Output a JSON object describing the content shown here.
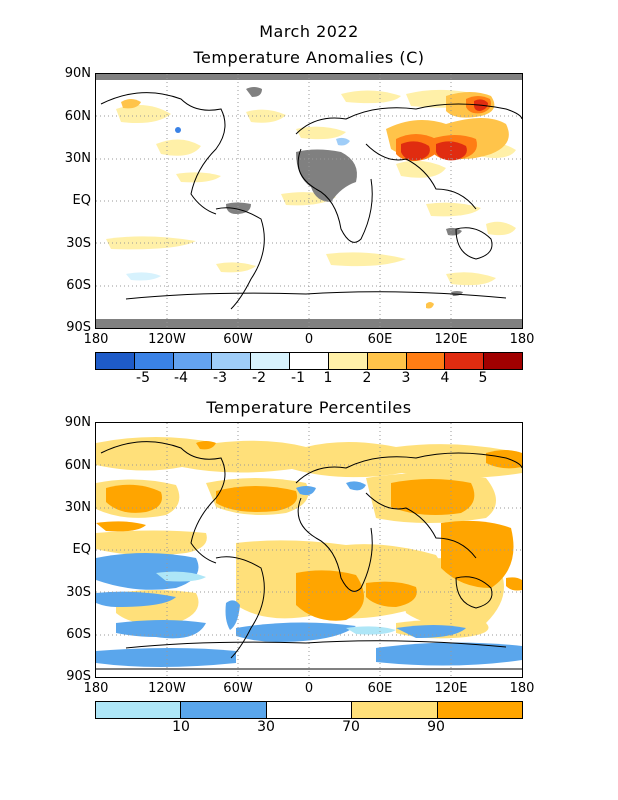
{
  "header": {
    "title": "March 2022"
  },
  "anomaly_map": {
    "title": "Temperature Anomalies (C)",
    "lat_labels": [
      "90N",
      "60N",
      "30N",
      "EQ",
      "30S",
      "60S",
      "90S"
    ],
    "lon_labels": [
      "180",
      "120W",
      "60W",
      "0",
      "60E",
      "120E",
      "180"
    ],
    "legend": {
      "labels": [
        "-5",
        "-4",
        "-3",
        "-2",
        "-1",
        "1",
        "2",
        "3",
        "4",
        "5"
      ],
      "colors": [
        "#1e5bc8",
        "#3a82e6",
        "#64a3f0",
        "#9fcdf8",
        "#d7f2fd",
        "#ffffff",
        "#fff0a8",
        "#ffc44a",
        "#ff7d14",
        "#e02c10",
        "#a00000"
      ]
    }
  },
  "percentile_map": {
    "title": "Temperature Percentiles",
    "lat_labels": [
      "90N",
      "60N",
      "30N",
      "EQ",
      "30S",
      "60S",
      "90S"
    ],
    "lon_labels": [
      "180",
      "120W",
      "60W",
      "0",
      "60E",
      "120E",
      "180"
    ],
    "legend": {
      "labels": [
        "10",
        "30",
        "70",
        "90"
      ],
      "colors": [
        "#aee6f7",
        "#5aa6ec",
        "#ffffff",
        "#ffe07a",
        "#ffa500"
      ]
    }
  },
  "colors": {
    "missing": "#808080",
    "land_outline": "#000000",
    "grid": "#999999"
  }
}
